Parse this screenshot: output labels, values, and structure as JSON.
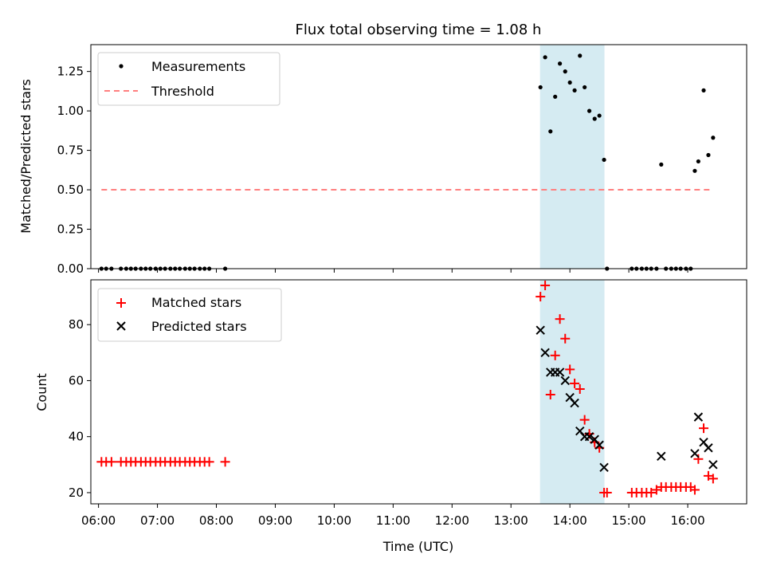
{
  "chart_data": [
    {
      "type": "scatter",
      "title": "Flux total observing time = 1.08 h",
      "xlabel": "",
      "ylabel": "Matched/Predicted stars",
      "xlim": [
        5.87,
        17.0
      ],
      "ylim": [
        0.0,
        1.42
      ],
      "yticks": [
        "0.00",
        "0.25",
        "0.50",
        "0.75",
        "1.00",
        "1.25"
      ],
      "legend": "top-left",
      "shaded_span_hours": [
        13.5,
        14.58
      ],
      "shaded_color": "#add8e6",
      "series": [
        {
          "name": "Measurements",
          "marker": "dot",
          "color": "#000000",
          "x": [
            6.05,
            6.13,
            6.22,
            6.38,
            6.47,
            6.55,
            6.63,
            6.72,
            6.8,
            6.88,
            6.97,
            7.05,
            7.13,
            7.22,
            7.3,
            7.38,
            7.47,
            7.55,
            7.63,
            7.72,
            7.8,
            7.88,
            8.15,
            13.5,
            13.58,
            13.67,
            13.75,
            13.83,
            13.92,
            14.0,
            14.08,
            14.17,
            14.25,
            14.33,
            14.42,
            14.5,
            14.58,
            14.63,
            15.05,
            15.13,
            15.22,
            15.3,
            15.38,
            15.47,
            15.55,
            15.63,
            15.72,
            15.8,
            15.88,
            15.97,
            16.05,
            16.12,
            16.18,
            16.27,
            16.35,
            16.43
          ],
          "y": [
            0,
            0,
            0,
            0,
            0,
            0,
            0,
            0,
            0,
            0,
            0,
            0,
            0,
            0,
            0,
            0,
            0,
            0,
            0,
            0,
            0,
            0,
            0,
            1.15,
            1.34,
            0.87,
            1.09,
            1.3,
            1.25,
            1.18,
            1.13,
            1.35,
            1.15,
            1.0,
            0.95,
            0.97,
            0.69,
            0,
            0,
            0,
            0,
            0,
            0,
            0,
            0.66,
            0,
            0,
            0,
            0,
            0,
            0,
            0.62,
            0.68,
            1.13,
            0.72,
            0.83
          ]
        },
        {
          "name": "Threshold",
          "marker": "dashed-line",
          "color": "#ff7f7f",
          "x": [
            6.05,
            16.43
          ],
          "y": [
            0.5,
            0.5
          ]
        }
      ]
    },
    {
      "type": "scatter",
      "title": "",
      "xlabel": "Time (UTC)",
      "ylabel": "Count",
      "xlim": [
        5.87,
        17.0
      ],
      "ylim": [
        16,
        96
      ],
      "xticks": [
        "06:00",
        "07:00",
        "08:00",
        "09:00",
        "10:00",
        "11:00",
        "12:00",
        "13:00",
        "14:00",
        "15:00",
        "16:00"
      ],
      "yticks": [
        "20",
        "40",
        "60",
        "80"
      ],
      "legend": "top-left",
      "shaded_span_hours": [
        13.5,
        14.58
      ],
      "shaded_color": "#add8e6",
      "series": [
        {
          "name": "Matched stars",
          "marker": "plus",
          "color": "#ff0000",
          "x": [
            6.05,
            6.13,
            6.22,
            6.38,
            6.47,
            6.55,
            6.63,
            6.72,
            6.8,
            6.88,
            6.97,
            7.05,
            7.13,
            7.22,
            7.3,
            7.38,
            7.47,
            7.55,
            7.63,
            7.72,
            7.8,
            7.88,
            8.15,
            13.5,
            13.58,
            13.67,
            13.75,
            13.83,
            13.92,
            14.0,
            14.08,
            14.17,
            14.25,
            14.33,
            14.42,
            14.5,
            14.58,
            14.63,
            15.05,
            15.13,
            15.22,
            15.3,
            15.38,
            15.47,
            15.55,
            15.63,
            15.72,
            15.8,
            15.88,
            15.97,
            16.05,
            16.12,
            16.18,
            16.27,
            16.35,
            16.43
          ],
          "y": [
            31,
            31,
            31,
            31,
            31,
            31,
            31,
            31,
            31,
            31,
            31,
            31,
            31,
            31,
            31,
            31,
            31,
            31,
            31,
            31,
            31,
            31,
            31,
            90,
            94,
            55,
            69,
            82,
            75,
            64,
            59,
            57,
            46,
            41,
            38,
            36,
            20,
            20,
            20,
            20,
            20,
            20,
            20,
            21,
            22,
            22,
            22,
            22,
            22,
            22,
            22,
            21,
            32,
            43,
            26,
            25
          ]
        },
        {
          "name": "Predicted stars",
          "marker": "x",
          "color": "#000000",
          "x": [
            13.5,
            13.58,
            13.67,
            13.75,
            13.83,
            13.92,
            14.0,
            14.08,
            14.17,
            14.25,
            14.33,
            14.42,
            14.5,
            14.58,
            15.55,
            16.12,
            16.18,
            16.27,
            16.35,
            16.43
          ],
          "y": [
            78,
            70,
            63,
            63,
            63,
            60,
            54,
            52,
            42,
            40,
            40,
            39,
            37,
            29,
            33,
            34,
            47,
            38,
            36,
            30
          ]
        }
      ]
    }
  ]
}
